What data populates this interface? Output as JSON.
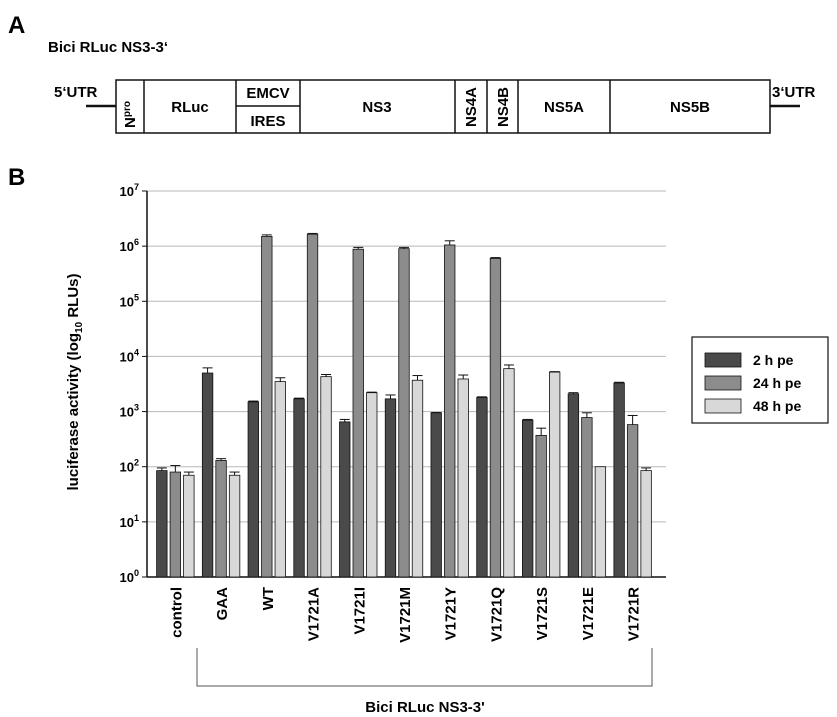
{
  "panel_a": {
    "letter": "A",
    "title": "Bici RLuc NS3-3‘",
    "utr5": "5‘UTR",
    "utr3": "3‘UTR",
    "npro": "N",
    "npro_sup": "pro",
    "segments": [
      "RLuc",
      "EMCV",
      "IRES",
      "NS3",
      "NS4A",
      "NS4B",
      "NS5A",
      "NS5B"
    ]
  },
  "panel_b": {
    "letter": "B"
  },
  "chart_data": {
    "type": "bar",
    "ylabel": "luciferase activity (log10 RLUs)",
    "ylabel_parts": {
      "main": "luciferase activity (log",
      "sub": "10",
      "tail": " RLUs)"
    },
    "yscale": "log",
    "ylim": [
      1,
      10000000
    ],
    "yticks": [
      {
        "base": "10",
        "exp": "0"
      },
      {
        "base": "10",
        "exp": "1"
      },
      {
        "base": "10",
        "exp": "2"
      },
      {
        "base": "10",
        "exp": "3"
      },
      {
        "base": "10",
        "exp": "4"
      },
      {
        "base": "10",
        "exp": "5"
      },
      {
        "base": "10",
        "exp": "6"
      },
      {
        "base": "10",
        "exp": "7"
      }
    ],
    "grid": true,
    "legend_position": "right",
    "categories": [
      "control",
      "GAA",
      "WT",
      "V1721A",
      "V1721I",
      "V1721M",
      "V1721Y",
      "V1721Q",
      "V1721S",
      "V1721E",
      "V1721R"
    ],
    "group_label": "Bici RLuc NS3-3'",
    "series": [
      {
        "name": "2 h pe",
        "color": "#4a4a4a",
        "values": [
          85,
          5000,
          1500,
          1700,
          650,
          1700,
          950,
          1800,
          700,
          2100,
          3300
        ],
        "errors": [
          95,
          6200,
          1550,
          1750,
          720,
          2000,
          960,
          1850,
          720,
          2200,
          3400
        ]
      },
      {
        "name": "24 h pe",
        "color": "#8c8c8c",
        "values": [
          80,
          130,
          1500000,
          1650000,
          880000,
          900000,
          1050000,
          600000,
          370,
          780,
          580
        ],
        "errors": [
          105,
          140,
          1600000,
          1700000,
          950000,
          950000,
          1250000,
          620000,
          500,
          950,
          850
        ]
      },
      {
        "name": "48 h pe",
        "color": "#d8d8d8",
        "values": [
          70,
          70,
          3500,
          4300,
          2200,
          3700,
          3900,
          6000,
          5200,
          100,
          85
        ],
        "errors": [
          80,
          80,
          4100,
          4700,
          2250,
          4500,
          4600,
          7000,
          5300,
          100,
          95
        ]
      }
    ]
  }
}
